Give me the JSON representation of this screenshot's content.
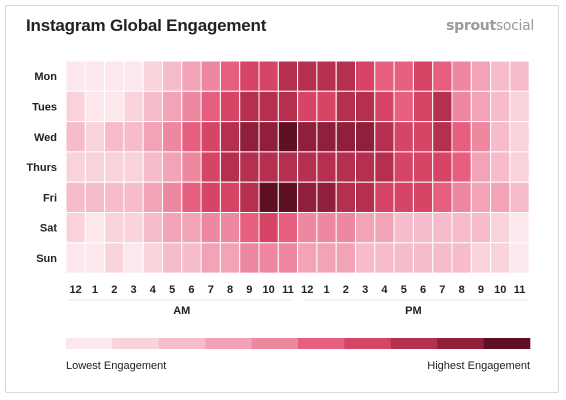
{
  "header": {
    "title": "Instagram Global Engagement",
    "brand_bold": "sprout",
    "brand_light": "social"
  },
  "chart_data": {
    "type": "heatmap",
    "title": "Instagram Global Engagement",
    "rows": [
      "Mon",
      "Tues",
      "Wed",
      "Thurs",
      "Fri",
      "Sat",
      "Sun"
    ],
    "columns": [
      "12",
      "1",
      "2",
      "3",
      "4",
      "5",
      "6",
      "7",
      "8",
      "9",
      "10",
      "11",
      "12",
      "1",
      "2",
      "3",
      "4",
      "5",
      "6",
      "7",
      "8",
      "9",
      "10",
      "11"
    ],
    "period_labels": [
      "AM",
      "PM"
    ],
    "legend": {
      "low_label": "Lowest Engagement",
      "high_label": "Highest Engagement",
      "levels": 10
    },
    "level_colors": [
      "#fbe7ec",
      "#f9d3dc",
      "#f6bccb",
      "#f2a3b6",
      "#ee87a0",
      "#e65f7f",
      "#d64466",
      "#b5304f",
      "#8f1f3a",
      "#5e0f22"
    ],
    "values": [
      [
        1,
        1,
        1,
        1,
        2,
        3,
        4,
        5,
        6,
        7,
        7,
        8,
        8,
        8,
        8,
        7,
        6,
        6,
        7,
        6,
        5,
        4,
        3,
        3
      ],
      [
        2,
        1,
        1,
        2,
        3,
        4,
        5,
        6,
        7,
        8,
        8,
        8,
        7,
        7,
        8,
        8,
        7,
        6,
        7,
        8,
        5,
        4,
        3,
        2
      ],
      [
        3,
        2,
        3,
        3,
        4,
        5,
        6,
        7,
        8,
        9,
        9,
        10,
        9,
        9,
        9,
        9,
        8,
        7,
        7,
        8,
        6,
        5,
        3,
        2
      ],
      [
        2,
        2,
        2,
        2,
        3,
        4,
        5,
        7,
        8,
        8,
        8,
        8,
        8,
        8,
        8,
        8,
        8,
        7,
        7,
        7,
        6,
        4,
        3,
        2
      ],
      [
        3,
        3,
        3,
        3,
        4,
        5,
        6,
        7,
        7,
        8,
        10,
        10,
        9,
        9,
        8,
        8,
        7,
        7,
        7,
        6,
        5,
        4,
        4,
        3
      ],
      [
        2,
        1,
        2,
        2,
        3,
        4,
        4,
        5,
        5,
        6,
        7,
        6,
        5,
        5,
        5,
        4,
        4,
        3,
        3,
        3,
        3,
        3,
        2,
        1
      ],
      [
        1,
        1,
        2,
        1,
        2,
        3,
        3,
        4,
        4,
        5,
        5,
        5,
        4,
        4,
        4,
        3,
        3,
        3,
        3,
        3,
        3,
        2,
        2,
        1
      ]
    ]
  }
}
